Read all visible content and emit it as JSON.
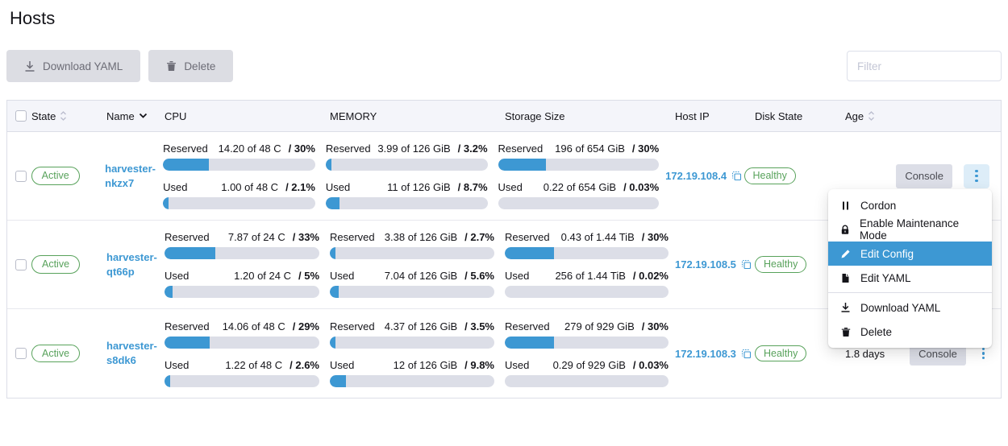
{
  "page": {
    "title": "Hosts"
  },
  "colors": {
    "accent": "#3d98d3",
    "success": "#58a25b"
  },
  "toolbar": {
    "download_yaml_label": "Download YAML",
    "delete_label": "Delete",
    "filter_placeholder": "Filter"
  },
  "table": {
    "headers": {
      "state": "State",
      "name": "Name",
      "cpu": "CPU",
      "memory": "MEMORY",
      "storage": "Storage Size",
      "host_ip": "Host IP",
      "disk_state": "Disk State",
      "age": "Age"
    },
    "metric_labels": {
      "reserved": "Reserved",
      "used": "Used"
    },
    "console_label": "Console",
    "rows": [
      {
        "state": "Active",
        "name": "harvester-nkzx7",
        "cpu": {
          "reserved": {
            "value": "14.20 of 48 C",
            "pct": "/ 30%",
            "fill": 30
          },
          "used": {
            "value": "1.00 of 48 C",
            "pct": "/ 2.1%",
            "fill": 2.1
          }
        },
        "memory": {
          "reserved": {
            "value": "3.99 of 126 GiB",
            "pct": "/ 3.2%",
            "fill": 3.2
          },
          "used": {
            "value": "11 of 126 GiB",
            "pct": "/ 8.7%",
            "fill": 8.7
          }
        },
        "storage": {
          "reserved": {
            "value": "196 of 654 GiB",
            "pct": "/ 30%",
            "fill": 30
          },
          "used": {
            "value": "0.22 of 654 GiB",
            "pct": "/ 0.03%",
            "fill": 0.03
          }
        },
        "host_ip": "172.19.108.4",
        "disk_state": "Healthy",
        "age": ""
      },
      {
        "state": "Active",
        "name": "harvester-qt66p",
        "cpu": {
          "reserved": {
            "value": "7.87 of 24 C",
            "pct": "/ 33%",
            "fill": 33
          },
          "used": {
            "value": "1.20 of 24 C",
            "pct": "/ 5%",
            "fill": 5
          }
        },
        "memory": {
          "reserved": {
            "value": "3.38 of 126 GiB",
            "pct": "/ 2.7%",
            "fill": 2.7
          },
          "used": {
            "value": "7.04 of 126 GiB",
            "pct": "/ 5.6%",
            "fill": 5.6
          }
        },
        "storage": {
          "reserved": {
            "value": "0.43 of 1.44 TiB",
            "pct": "/ 30%",
            "fill": 30
          },
          "used": {
            "value": "256 of 1.44 TiB",
            "pct": "/ 0.02%",
            "fill": 0.02
          }
        },
        "host_ip": "172.19.108.5",
        "disk_state": "Healthy",
        "age": ""
      },
      {
        "state": "Active",
        "name": "harvester-s8dk6",
        "cpu": {
          "reserved": {
            "value": "14.06 of 48 C",
            "pct": "/ 29%",
            "fill": 29
          },
          "used": {
            "value": "1.22 of 48 C",
            "pct": "/ 2.6%",
            "fill": 2.6
          }
        },
        "memory": {
          "reserved": {
            "value": "4.37 of 126 GiB",
            "pct": "/ 3.5%",
            "fill": 3.5
          },
          "used": {
            "value": "12 of 126 GiB",
            "pct": "/ 9.8%",
            "fill": 9.8
          }
        },
        "storage": {
          "reserved": {
            "value": "279 of 929 GiB",
            "pct": "/ 30%",
            "fill": 30
          },
          "used": {
            "value": "0.29 of 929 GiB",
            "pct": "/ 0.03%",
            "fill": 0.03
          }
        },
        "host_ip": "172.19.108.3",
        "disk_state": "Healthy",
        "age": "1.8 days"
      }
    ]
  },
  "menu": {
    "items": [
      {
        "icon": "pause-icon",
        "label": "Cordon"
      },
      {
        "icon": "lock-icon",
        "label": "Enable Maintenance Mode"
      },
      {
        "icon": "pencil-icon",
        "label": "Edit Config",
        "active": true
      },
      {
        "icon": "file-icon",
        "label": "Edit YAML"
      },
      {
        "icon": "download-icon",
        "label": "Download YAML",
        "divider_before": true
      },
      {
        "icon": "trash-icon",
        "label": "Delete"
      }
    ]
  }
}
